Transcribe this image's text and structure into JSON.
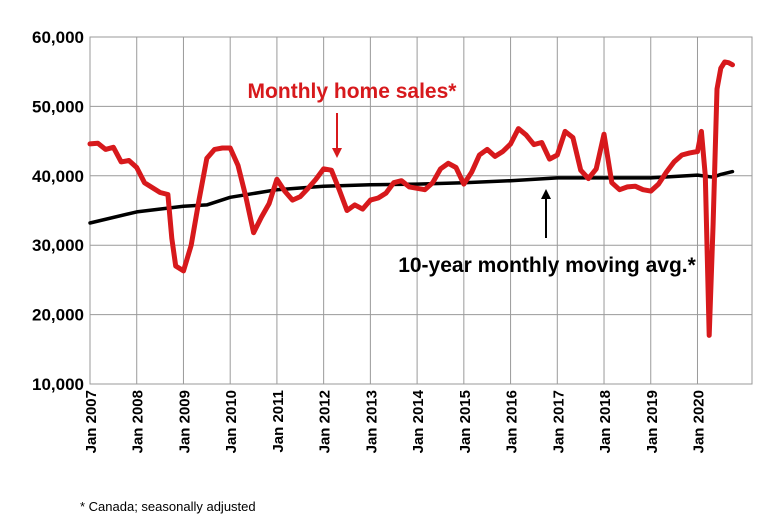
{
  "chart_data": {
    "type": "line",
    "ylim": [
      10000,
      60000
    ],
    "xlim": [
      "2007-01",
      "2021-03"
    ],
    "grid": true,
    "y_ticks": [
      "10,000",
      "20,000",
      "30,000",
      "40,000",
      "50,000",
      "60,000"
    ],
    "x_ticks": [
      "Jan 2007",
      "Jan 2008",
      "Jan 2009",
      "Jan 2010",
      "Jan 2011",
      "Jan 2012",
      "Jan 2013",
      "Jan 2014",
      "Jan 2015",
      "Jan 2016",
      "Jan 2017",
      "Jan 2018",
      "Jan 2019",
      "Jan 2020"
    ],
    "series": [
      {
        "name": "Monthly home sales*",
        "color": "#d7191c",
        "points": [
          [
            "2007-01",
            44600
          ],
          [
            "2007-03",
            44700
          ],
          [
            "2007-05",
            43800
          ],
          [
            "2007-07",
            44100
          ],
          [
            "2007-09",
            42000
          ],
          [
            "2007-11",
            42200
          ],
          [
            "2008-01",
            41200
          ],
          [
            "2008-03",
            39000
          ],
          [
            "2008-05",
            38300
          ],
          [
            "2008-07",
            37600
          ],
          [
            "2008-09",
            37300
          ],
          [
            "2008-10",
            31000
          ],
          [
            "2008-11",
            27000
          ],
          [
            "2009-01",
            26300
          ],
          [
            "2009-03",
            30000
          ],
          [
            "2009-05",
            36500
          ],
          [
            "2009-07",
            42500
          ],
          [
            "2009-09",
            43800
          ],
          [
            "2009-11",
            44000
          ],
          [
            "2010-01",
            44000
          ],
          [
            "2010-03",
            41500
          ],
          [
            "2010-05",
            37000
          ],
          [
            "2010-07",
            31800
          ],
          [
            "2010-09",
            34000
          ],
          [
            "2010-11",
            36000
          ],
          [
            "2011-01",
            39500
          ],
          [
            "2011-03",
            37800
          ],
          [
            "2011-05",
            36500
          ],
          [
            "2011-07",
            37000
          ],
          [
            "2011-09",
            38200
          ],
          [
            "2011-11",
            39500
          ],
          [
            "2012-01",
            41000
          ],
          [
            "2012-03",
            40800
          ],
          [
            "2012-05",
            38000
          ],
          [
            "2012-07",
            35000
          ],
          [
            "2012-09",
            35800
          ],
          [
            "2012-11",
            35200
          ],
          [
            "2013-01",
            36500
          ],
          [
            "2013-03",
            36800
          ],
          [
            "2013-05",
            37500
          ],
          [
            "2013-07",
            39000
          ],
          [
            "2013-09",
            39300
          ],
          [
            "2013-11",
            38400
          ],
          [
            "2014-01",
            38200
          ],
          [
            "2014-03",
            38000
          ],
          [
            "2014-05",
            39000
          ],
          [
            "2014-07",
            41000
          ],
          [
            "2014-09",
            41800
          ],
          [
            "2014-11",
            41200
          ],
          [
            "2015-01",
            38800
          ],
          [
            "2015-03",
            40500
          ],
          [
            "2015-05",
            43000
          ],
          [
            "2015-07",
            43800
          ],
          [
            "2015-09",
            42800
          ],
          [
            "2015-11",
            43500
          ],
          [
            "2016-01",
            44600
          ],
          [
            "2016-03",
            46800
          ],
          [
            "2016-05",
            45900
          ],
          [
            "2016-07",
            44500
          ],
          [
            "2016-09",
            44800
          ],
          [
            "2016-11",
            42400
          ],
          [
            "2017-01",
            43000
          ],
          [
            "2017-03",
            46400
          ],
          [
            "2017-05",
            45500
          ],
          [
            "2017-07",
            40800
          ],
          [
            "2017-09",
            39600
          ],
          [
            "2017-11",
            41000
          ],
          [
            "2018-01",
            46000
          ],
          [
            "2018-03",
            39000
          ],
          [
            "2018-05",
            38000
          ],
          [
            "2018-07",
            38400
          ],
          [
            "2018-09",
            38500
          ],
          [
            "2018-11",
            38000
          ],
          [
            "2019-01",
            37800
          ],
          [
            "2019-03",
            38800
          ],
          [
            "2019-05",
            40500
          ],
          [
            "2019-07",
            42000
          ],
          [
            "2019-09",
            43000
          ],
          [
            "2019-11",
            43300
          ],
          [
            "2020-01",
            43500
          ],
          [
            "2020-02",
            46400
          ],
          [
            "2020-03",
            40000
          ],
          [
            "2020-04",
            17000
          ],
          [
            "2020-05",
            33000
          ],
          [
            "2020-06",
            52500
          ],
          [
            "2020-07",
            55500
          ],
          [
            "2020-08",
            56400
          ],
          [
            "2020-09",
            56300
          ],
          [
            "2020-10",
            56000
          ]
        ]
      },
      {
        "name": "10-year monthly moving avg.*",
        "color": "#000000",
        "points": [
          [
            "2007-01",
            33200
          ],
          [
            "2008-01",
            34800
          ],
          [
            "2009-01",
            35600
          ],
          [
            "2009-07",
            35800
          ],
          [
            "2010-01",
            36900
          ],
          [
            "2011-01",
            38000
          ],
          [
            "2012-01",
            38500
          ],
          [
            "2013-01",
            38700
          ],
          [
            "2014-01",
            38800
          ],
          [
            "2015-01",
            39000
          ],
          [
            "2016-01",
            39300
          ],
          [
            "2017-01",
            39700
          ],
          [
            "2018-01",
            39700
          ],
          [
            "2019-01",
            39700
          ],
          [
            "2020-01",
            40100
          ],
          [
            "2020-05",
            39800
          ],
          [
            "2020-07",
            40200
          ],
          [
            "2020-10",
            40600
          ]
        ]
      }
    ],
    "annotations": [
      {
        "text": "Monthly home sales*",
        "color": "#d7191c"
      },
      {
        "text": "10-year monthly moving avg.*",
        "color": "#000000"
      }
    ],
    "footnote": "* Canada; seasonally adjusted"
  }
}
